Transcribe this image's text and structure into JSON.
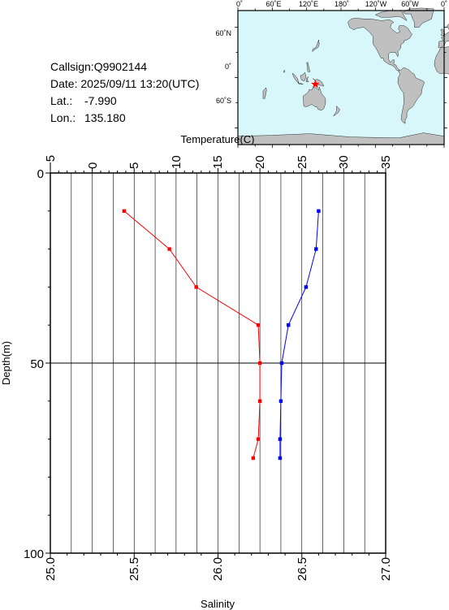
{
  "station": {
    "callsign": "Callsign:Q9902144",
    "date": "Date:  2025/09/11 13:20(UTC)",
    "lat_label": "Lat.:",
    "lat_value": "-7.990",
    "lon_label": "Lon.:",
    "lon_value": "135.180"
  },
  "map": {
    "top_labels": [
      "0˚",
      "60˚E",
      "120˚E",
      "180˚",
      "120˚W",
      "60˚W",
      "0˚"
    ],
    "side_labels": [
      "60˚N",
      "0˚",
      "60˚S"
    ],
    "ocean_color": "#d7f7fb",
    "land_color": "#c0c0c0",
    "marker_color": "#ff0000",
    "marker_icon": "star-icon",
    "marker_lon": 135.18,
    "marker_lat": -7.99
  },
  "chart_data": {
    "type": "line",
    "title": "",
    "ylabel": "Depth(m)",
    "ylim": [
      0,
      100
    ],
    "y_inverted": true,
    "y_ticks": [
      "0",
      "50",
      "100"
    ],
    "grid": true,
    "temperature_axis": {
      "label": "Temperature(C)",
      "position": "top",
      "range": [
        -5,
        35
      ],
      "ticks": [
        "−5",
        "0",
        "5",
        "10",
        "15",
        "20",
        "25",
        "30",
        "35"
      ]
    },
    "salinity_axis": {
      "label": "Salinity",
      "position": "bottom",
      "range": [
        25.0,
        27.0
      ],
      "ticks": [
        "25.0",
        "25.5",
        "26.0",
        "26.5",
        "27.0"
      ]
    },
    "series": [
      {
        "axis": "temperature",
        "color": "#0000ff",
        "depth": [
          10,
          20,
          30,
          40,
          50,
          60,
          70,
          75
        ],
        "values": [
          27.0,
          26.7,
          25.5,
          23.4,
          22.6,
          22.5,
          22.4,
          22.4
        ]
      },
      {
        "axis": "salinity",
        "color": "#ff0000",
        "depth": [
          10,
          20,
          30,
          40,
          50,
          60,
          70,
          75
        ],
        "values": [
          25.44,
          25.71,
          25.87,
          26.24,
          26.25,
          26.25,
          26.24,
          26.21
        ]
      }
    ]
  }
}
